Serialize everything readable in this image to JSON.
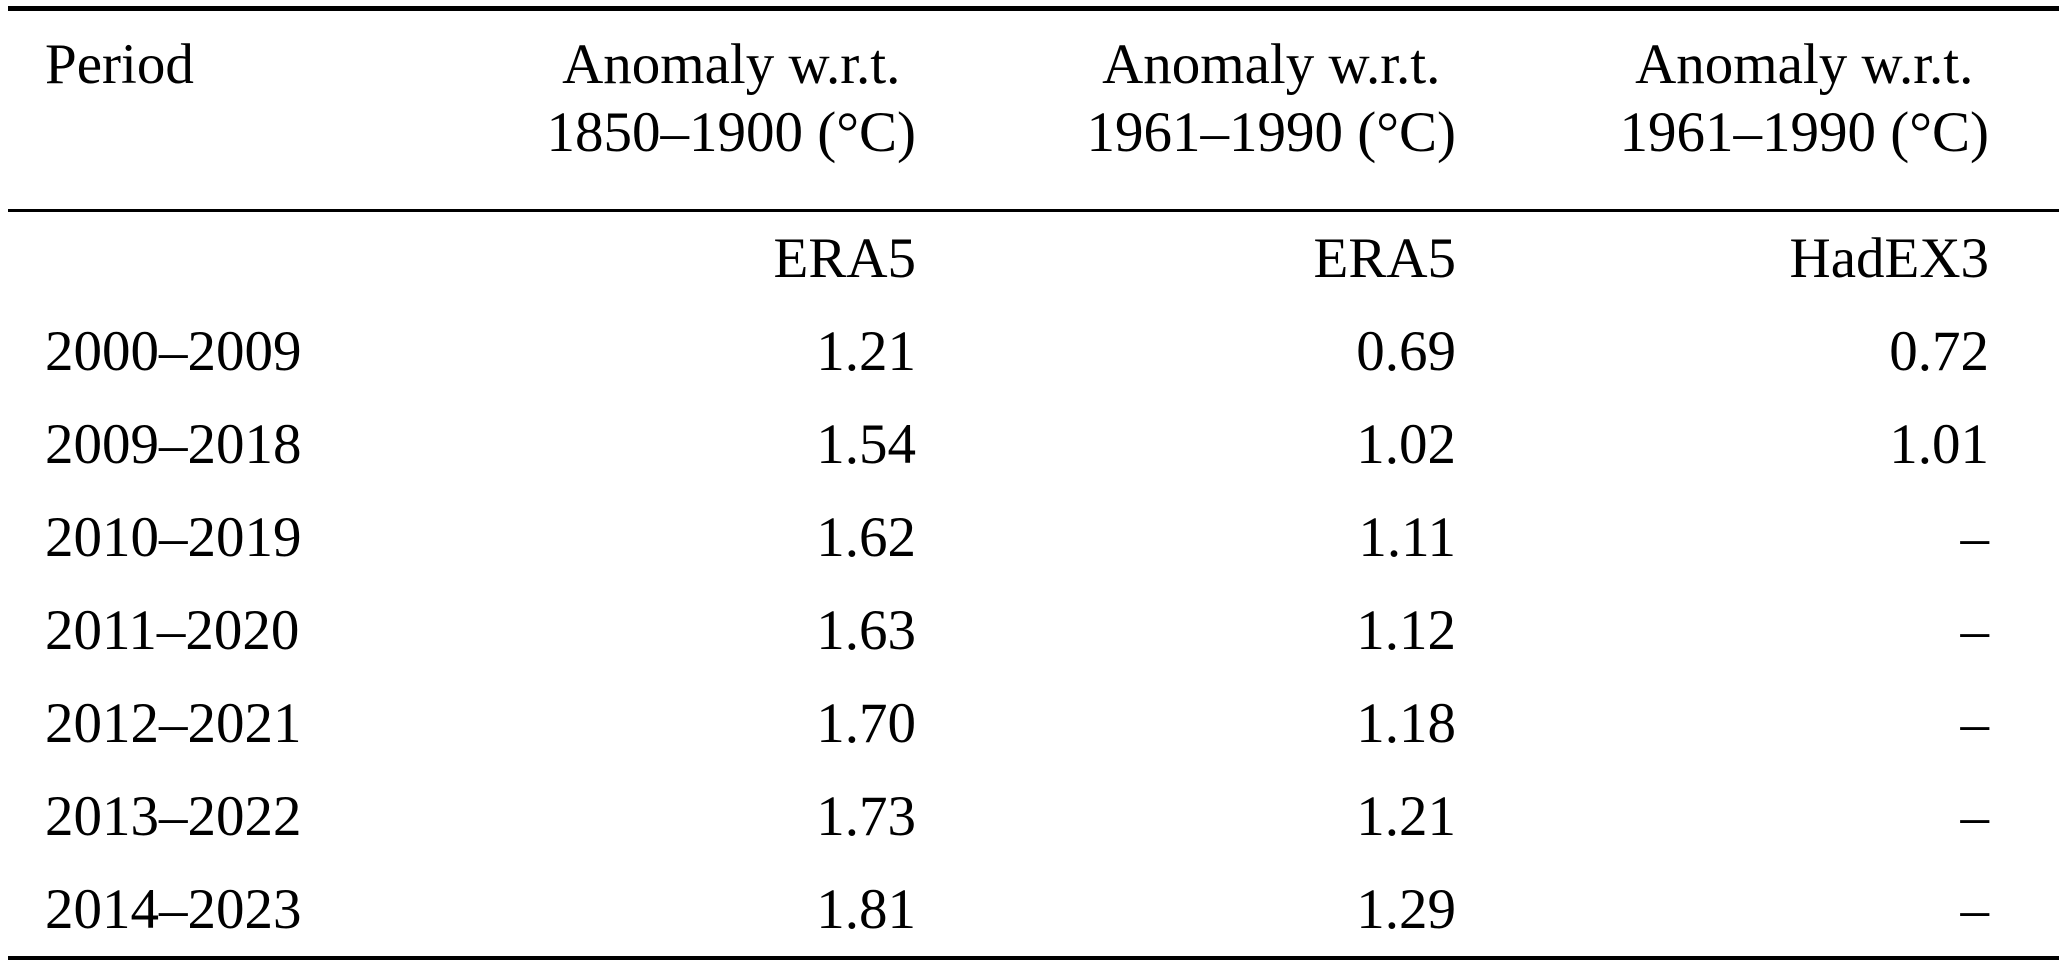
{
  "page": {
    "background": "#ffffff",
    "text_color": "#000000",
    "rule_color": "#000000"
  },
  "table": {
    "header": [
      {
        "line1": "Period",
        "line2": ""
      },
      {
        "line1": "Anomaly w.r.t.",
        "line2": "1850–1900 (°C)"
      },
      {
        "line1": "Anomaly w.r.t.",
        "line2": "1961–1990 (°C)"
      },
      {
        "line1": "Anomaly w.r.t.",
        "line2": "1961–1990 (°C)"
      }
    ],
    "source_row": [
      "",
      "ERA5",
      "ERA5",
      "HadEX3"
    ],
    "rows": [
      [
        "2000–2009",
        "1.21",
        "0.69",
        "0.72"
      ],
      [
        "2009–2018",
        "1.54",
        "1.02",
        "1.01"
      ],
      [
        "2010–2019",
        "1.62",
        "1.11",
        "–"
      ],
      [
        "2011–2020",
        "1.63",
        "1.12",
        "–"
      ],
      [
        "2012–2021",
        "1.70",
        "1.18",
        "–"
      ],
      [
        "2013–2022",
        "1.73",
        "1.21",
        "–"
      ],
      [
        "2014–2023",
        "1.81",
        "1.29",
        "–"
      ]
    ]
  },
  "chart_data": {
    "type": "table",
    "title": "",
    "columns": [
      "Period",
      "Anomaly w.r.t. 1850–1900 (°C) — ERA5",
      "Anomaly w.r.t. 1961–1990 (°C) — ERA5",
      "Anomaly w.r.t. 1961–1990 (°C) — HadEX3"
    ],
    "rows": [
      [
        "2000–2009",
        1.21,
        0.69,
        0.72
      ],
      [
        "2009–2018",
        1.54,
        1.02,
        1.01
      ],
      [
        "2010–2019",
        1.62,
        1.11,
        null
      ],
      [
        "2011–2020",
        1.63,
        1.12,
        null
      ],
      [
        "2012–2021",
        1.7,
        1.18,
        null
      ],
      [
        "2013–2022",
        1.73,
        1.21,
        null
      ],
      [
        "2014–2023",
        1.81,
        1.29,
        null
      ]
    ]
  }
}
